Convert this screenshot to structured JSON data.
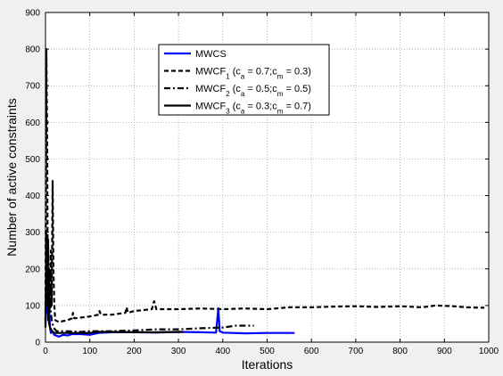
{
  "chart_data": {
    "type": "line",
    "title": "",
    "xlabel": "Iterations",
    "ylabel": "Number of active constraints",
    "xlim": [
      0,
      1000
    ],
    "ylim": [
      0,
      900
    ],
    "xticks": [
      0,
      100,
      200,
      300,
      400,
      500,
      600,
      700,
      800,
      900,
      1000
    ],
    "yticks": [
      0,
      100,
      200,
      300,
      400,
      500,
      600,
      700,
      800,
      900
    ],
    "grid": true,
    "legend_position": "top-center",
    "series": [
      {
        "name": "MWCS",
        "legend_parts": [
          {
            "t": "MWCS"
          }
        ],
        "color": "#0000ff",
        "style": "solid",
        "width": 2.2,
        "points": [
          [
            0,
            60
          ],
          [
            2,
            120
          ],
          [
            3,
            80
          ],
          [
            5,
            140
          ],
          [
            6,
            60
          ],
          [
            8,
            100
          ],
          [
            10,
            40
          ],
          [
            12,
            25
          ],
          [
            15,
            30
          ],
          [
            20,
            20
          ],
          [
            30,
            15
          ],
          [
            40,
            20
          ],
          [
            50,
            18
          ],
          [
            60,
            22
          ],
          [
            80,
            22
          ],
          [
            100,
            20
          ],
          [
            120,
            25
          ],
          [
            150,
            27
          ],
          [
            200,
            27
          ],
          [
            250,
            26
          ],
          [
            300,
            28
          ],
          [
            350,
            27
          ],
          [
            385,
            26
          ],
          [
            390,
            93
          ],
          [
            393,
            30
          ],
          [
            400,
            26
          ],
          [
            450,
            24
          ],
          [
            500,
            25
          ],
          [
            540,
            25
          ],
          [
            562,
            25
          ]
        ]
      },
      {
        "name": "MWCF1 (ca = 0.7;cm = 0.3)",
        "legend_parts": [
          {
            "t": "MWCF"
          },
          {
            "t": "1",
            "sub": true
          },
          {
            "t": " (c"
          },
          {
            "t": "a",
            "sub": true
          },
          {
            "t": " = 0.7;c"
          },
          {
            "t": "m",
            "sub": true
          },
          {
            "t": " = 0.3)"
          }
        ],
        "color": "#000000",
        "style": "dash",
        "width": 2.2,
        "points": [
          [
            0,
            60
          ],
          [
            2,
            800
          ],
          [
            4,
            500
          ],
          [
            5,
            150
          ],
          [
            6,
            280
          ],
          [
            7,
            100
          ],
          [
            8,
            200
          ],
          [
            9,
            80
          ],
          [
            12,
            250
          ],
          [
            14,
            100
          ],
          [
            16,
            440
          ],
          [
            18,
            200
          ],
          [
            20,
            100
          ],
          [
            22,
            60
          ],
          [
            30,
            55
          ],
          [
            50,
            60
          ],
          [
            60,
            65
          ],
          [
            62,
            80
          ],
          [
            65,
            65
          ],
          [
            100,
            70
          ],
          [
            120,
            75
          ],
          [
            122,
            85
          ],
          [
            125,
            75
          ],
          [
            150,
            75
          ],
          [
            180,
            80
          ],
          [
            183,
            95
          ],
          [
            186,
            80
          ],
          [
            200,
            85
          ],
          [
            240,
            90
          ],
          [
            245,
            112
          ],
          [
            250,
            90
          ],
          [
            300,
            90
          ],
          [
            350,
            92
          ],
          [
            400,
            90
          ],
          [
            450,
            92
          ],
          [
            500,
            90
          ],
          [
            550,
            95
          ],
          [
            600,
            95
          ],
          [
            650,
            97
          ],
          [
            700,
            98
          ],
          [
            750,
            96
          ],
          [
            800,
            98
          ],
          [
            850,
            95
          ],
          [
            880,
            100
          ],
          [
            920,
            98
          ],
          [
            950,
            95
          ],
          [
            990,
            94
          ]
        ]
      },
      {
        "name": "MWCF2 (ca = 0.5;cm = 0.5)",
        "legend_parts": [
          {
            "t": "MWCF"
          },
          {
            "t": "2",
            "sub": true
          },
          {
            "t": " (c"
          },
          {
            "t": "a",
            "sub": true
          },
          {
            "t": " = 0.5;c"
          },
          {
            "t": "m",
            "sub": true
          },
          {
            "t": " = 0.5)"
          }
        ],
        "color": "#000000",
        "style": "dashdot",
        "width": 2.2,
        "points": [
          [
            0,
            50
          ],
          [
            2,
            300
          ],
          [
            4,
            150
          ],
          [
            6,
            250
          ],
          [
            8,
            100
          ],
          [
            10,
            200
          ],
          [
            12,
            80
          ],
          [
            14,
            60
          ],
          [
            18,
            40
          ],
          [
            25,
            30
          ],
          [
            50,
            30
          ],
          [
            80,
            28
          ],
          [
            100,
            30
          ],
          [
            150,
            30
          ],
          [
            200,
            32
          ],
          [
            250,
            35
          ],
          [
            300,
            35
          ],
          [
            350,
            38
          ],
          [
            400,
            40
          ],
          [
            430,
            45
          ],
          [
            470,
            45
          ]
        ]
      },
      {
        "name": "MWCF3 (ca = 0.3;cm = 0.7)",
        "legend_parts": [
          {
            "t": "MWCF"
          },
          {
            "t": "3",
            "sub": true
          },
          {
            "t": " (c"
          },
          {
            "t": "a",
            "sub": true
          },
          {
            "t": " = 0.3;c"
          },
          {
            "t": "m",
            "sub": true
          },
          {
            "t": " = 0.7)"
          }
        ],
        "color": "#000000",
        "style": "solid",
        "width": 2.2,
        "points": [
          [
            0,
            40
          ],
          [
            2,
            200
          ],
          [
            3,
            100
          ],
          [
            5,
            150
          ],
          [
            7,
            60
          ],
          [
            10,
            40
          ],
          [
            15,
            30
          ],
          [
            20,
            25
          ],
          [
            50,
            25
          ],
          [
            100,
            25
          ],
          [
            120,
            28
          ],
          [
            150,
            28
          ],
          [
            200,
            27
          ],
          [
            250,
            27
          ],
          [
            300,
            28
          ],
          [
            310,
            28
          ]
        ]
      }
    ]
  }
}
